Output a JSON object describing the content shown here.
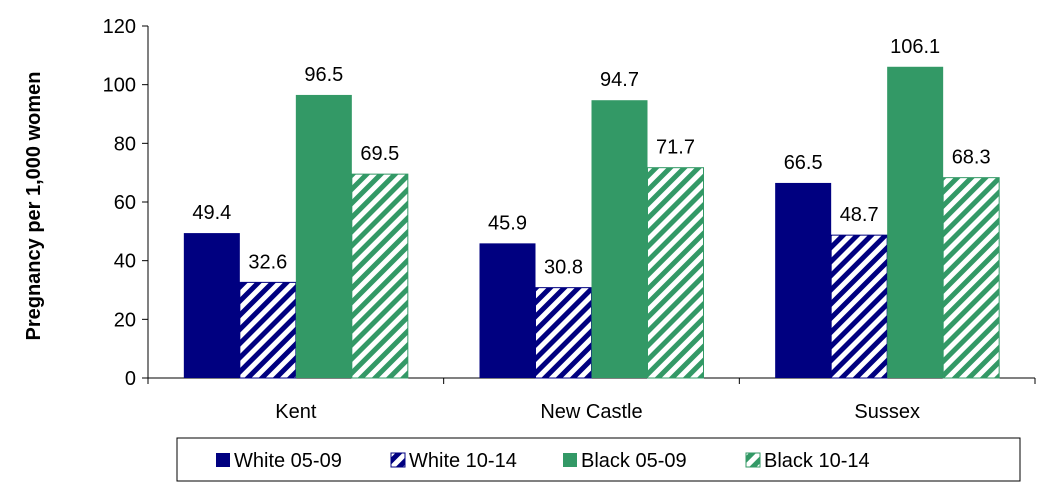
{
  "chart_data": {
    "type": "bar",
    "title": "",
    "xlabel": "",
    "ylabel": "Pregnancy per 1,000 women",
    "ylim": [
      0,
      120
    ],
    "yticks": [
      0,
      20,
      40,
      60,
      80,
      100,
      120
    ],
    "categories": [
      "Kent",
      "New Castle",
      "Sussex"
    ],
    "series": [
      {
        "name": "White 05-09",
        "values": [
          49.4,
          45.9,
          66.5
        ],
        "color": "#000080",
        "pattern": "solid"
      },
      {
        "name": "White 10-14",
        "values": [
          32.6,
          30.8,
          48.7
        ],
        "color": "#000080",
        "pattern": "hatch"
      },
      {
        "name": "Black 05-09",
        "values": [
          96.5,
          94.7,
          106.1
        ],
        "color": "#339966",
        "pattern": "solid"
      },
      {
        "name": "Black 10-14",
        "values": [
          69.5,
          71.7,
          68.3
        ],
        "color": "#339966",
        "pattern": "hatch"
      }
    ],
    "data_labels": true,
    "grid": false,
    "legend": "bottom"
  }
}
